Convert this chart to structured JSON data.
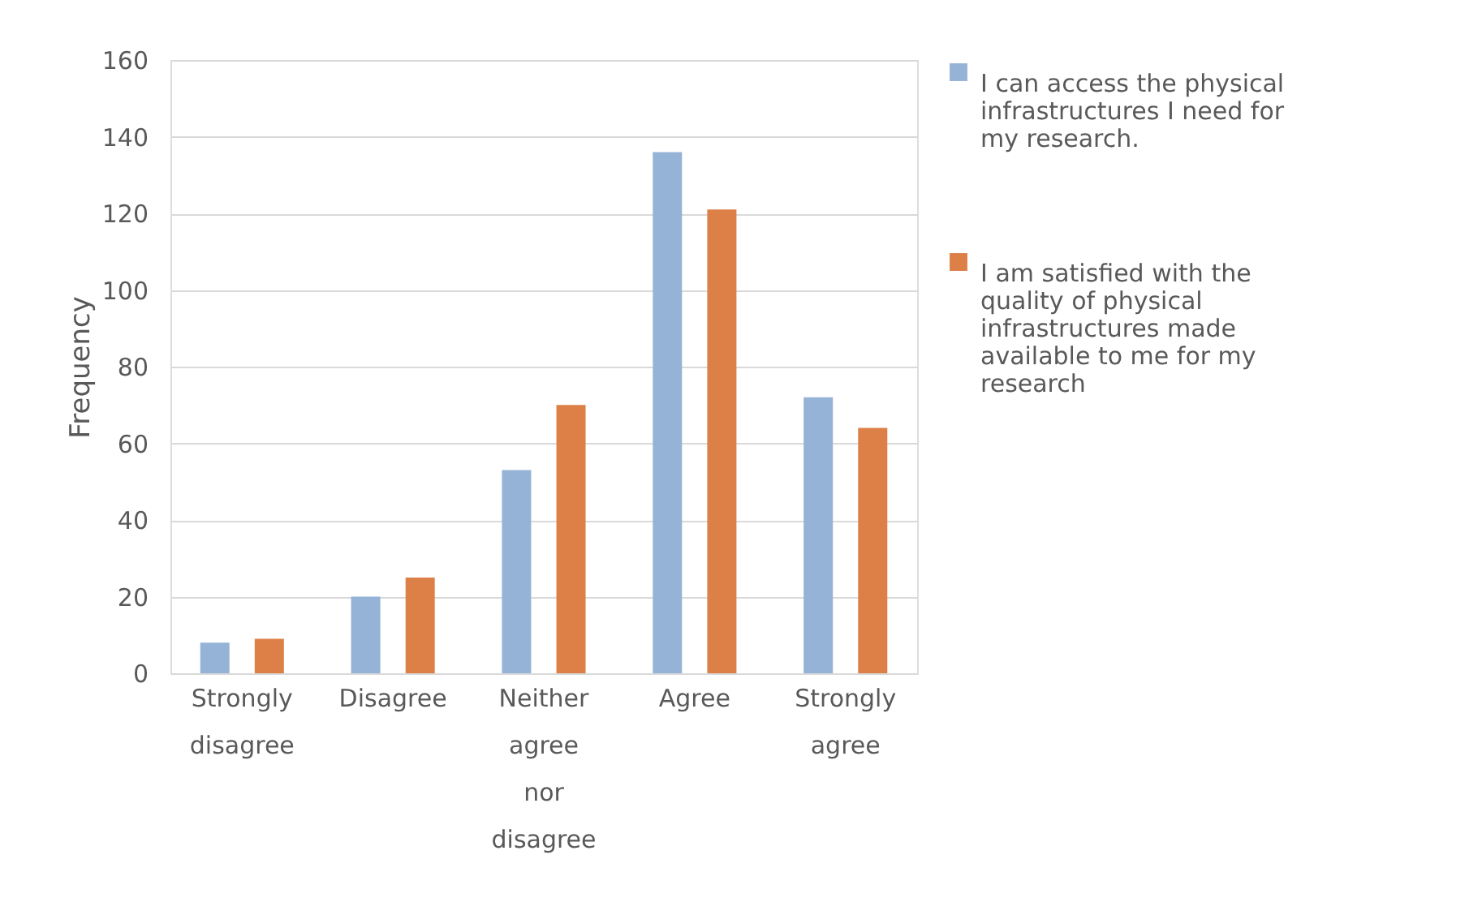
{
  "chart_data": {
    "type": "bar",
    "ylabel": "Frequency",
    "categories": [
      "Strongly disagree",
      "Disagree",
      "Neither agree nor disagree",
      "Agree",
      "Strongly agree"
    ],
    "series": [
      {
        "name": "I can access the physical infrastructures I need for my research.",
        "color": "#95b3d7",
        "values": [
          8,
          20,
          53,
          136,
          72
        ]
      },
      {
        "name": "I am satisfied with the quality of physical infrastructures made available to me for my research",
        "color": "#dd8047",
        "values": [
          9,
          25,
          70,
          121,
          64
        ]
      }
    ],
    "ylim": [
      0,
      160
    ],
    "yticks": [
      0,
      20,
      40,
      60,
      80,
      100,
      120,
      140,
      160
    ],
    "grid": "y",
    "legend": "right"
  }
}
